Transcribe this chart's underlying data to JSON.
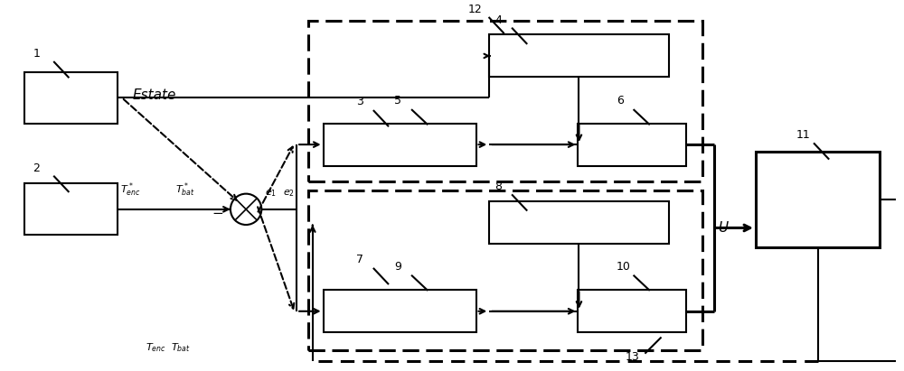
{
  "fig_w": 10.0,
  "fig_h": 4.11,
  "lc": "#000000",
  "lw": 1.5,
  "lw_thick": 2.2,
  "lw_dash": 2.2,
  "fs_label": 8.5,
  "fs_num": 9,
  "fs_estate": 11
}
